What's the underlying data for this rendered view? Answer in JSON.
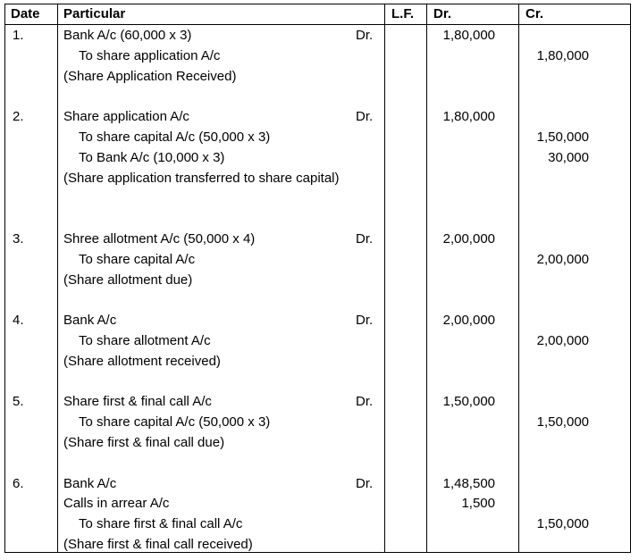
{
  "headers": {
    "date": "Date",
    "particular": "Particular",
    "lf": "L.F.",
    "dr": "Dr.",
    "cr": "Cr."
  },
  "entries": [
    {
      "date": "1.",
      "lines": [
        {
          "kind": "debit",
          "text": "Bank A/c (60,000 x 3)",
          "dr_label": "Dr.",
          "dr": "1,80,000"
        },
        {
          "kind": "credit",
          "text": "To share application A/c",
          "cr": "1,80,000"
        }
      ],
      "narration": "(Share Application Received)"
    },
    {
      "date": "2.",
      "lines": [
        {
          "kind": "debit",
          "text": "Share application A/c",
          "dr_label": "Dr.",
          "dr": "1,80,000"
        },
        {
          "kind": "credit",
          "text": "To share capital A/c (50,000 x 3)",
          "cr": "1,50,000"
        },
        {
          "kind": "credit",
          "text": "To Bank A/c  (10,000 x 3)",
          "cr": "30,000"
        }
      ],
      "narration": "(Share application transferred to share capital)"
    },
    {
      "date": "3.",
      "lines": [
        {
          "kind": "debit",
          "text": "Shree allotment A/c (50,000 x 4)",
          "dr_label": "Dr.",
          "dr": "2,00,000"
        },
        {
          "kind": "credit",
          "text": "To share capital A/c",
          "cr": "2,00,000"
        }
      ],
      "narration": "(Share allotment due)"
    },
    {
      "date": "4.",
      "lines": [
        {
          "kind": "debit",
          "text": "Bank A/c",
          "dr_label": "Dr.",
          "dr": "2,00,000"
        },
        {
          "kind": "credit",
          "text": "To share allotment A/c",
          "cr": "2,00,000"
        }
      ],
      "narration": "(Share allotment received)"
    },
    {
      "date": "5.",
      "lines": [
        {
          "kind": "debit",
          "text": "Share first & final call A/c",
          "dr_label": "Dr.",
          "dr": "1,50,000"
        },
        {
          "kind": "credit",
          "text": "To share capital A/c (50,000 x 3)",
          "cr": "1,50,000"
        }
      ],
      "narration": "(Share first & final call due)"
    },
    {
      "date": "6.",
      "lines": [
        {
          "kind": "debit",
          "text": "Bank A/c",
          "dr_label": "Dr.",
          "dr": "1,48,500"
        },
        {
          "kind": "debit",
          "text": "Calls in arrear A/c",
          "dr": "1,500"
        },
        {
          "kind": "credit",
          "text": "To share first & final call A/c",
          "cr": "1,50,000"
        }
      ],
      "narration": "(Share first & final call received)"
    }
  ]
}
